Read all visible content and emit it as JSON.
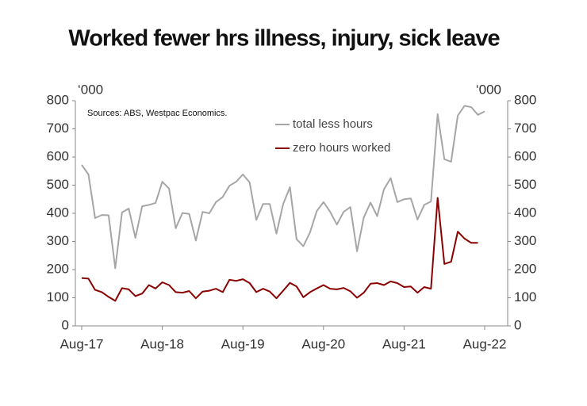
{
  "chart_data": {
    "type": "line",
    "title": "Worked fewer hrs illness, injury, sick leave",
    "annotation": "Sources: ABS, Westpac Economics.",
    "y_unit_label": "‘000",
    "y2_unit_label": "‘000",
    "categories": [
      "Aug-17",
      null,
      null,
      null,
      null,
      null,
      null,
      null,
      null,
      null,
      null,
      null,
      "Aug-18",
      null,
      null,
      null,
      null,
      null,
      null,
      null,
      null,
      null,
      null,
      null,
      "Aug-19",
      null,
      null,
      null,
      null,
      null,
      null,
      null,
      null,
      null,
      null,
      null,
      "Aug-20",
      null,
      null,
      null,
      null,
      null,
      null,
      null,
      null,
      null,
      null,
      null,
      "Aug-21",
      null,
      null,
      null,
      null,
      null,
      null,
      null,
      null,
      null,
      null,
      null,
      "Aug-22"
    ],
    "series": [
      {
        "name": "total less hours",
        "color": "#a6a6a6",
        "values": [
          572,
          538,
          383,
          394,
          393,
          205,
          403,
          417,
          313,
          425,
          430,
          437,
          512,
          488,
          347,
          401,
          398,
          303,
          405,
          400,
          440,
          458,
          498,
          512,
          538,
          510,
          377,
          433,
          433,
          328,
          433,
          493,
          308,
          283,
          333,
          408,
          440,
          405,
          360,
          405,
          422,
          265,
          385,
          438,
          390,
          485,
          525,
          440,
          450,
          453,
          378,
          430,
          442,
          752,
          592,
          583,
          747,
          782,
          777,
          750,
          762
        ]
      },
      {
        "name": "zero hours worked",
        "color": "#8b0000",
        "values": [
          170,
          168,
          128,
          120,
          103,
          89,
          134,
          130,
          106,
          115,
          145,
          133,
          155,
          145,
          120,
          118,
          124,
          98,
          122,
          125,
          132,
          120,
          164,
          160,
          166,
          152,
          120,
          132,
          122,
          98,
          125,
          153,
          140,
          102,
          120,
          133,
          145,
          132,
          130,
          135,
          123,
          100,
          118,
          150,
          152,
          145,
          158,
          152,
          138,
          140,
          118,
          138,
          132,
          455,
          220,
          228,
          335,
          310,
          295,
          295,
          null
        ]
      }
    ],
    "ylim": [
      0,
      800
    ],
    "yticks": [
      0,
      100,
      200,
      300,
      400,
      500,
      600,
      700,
      800
    ],
    "y2lim": [
      0,
      800
    ],
    "y2ticks": [
      0,
      100,
      200,
      300,
      400,
      500,
      600,
      700,
      800
    ],
    "grid": false
  }
}
